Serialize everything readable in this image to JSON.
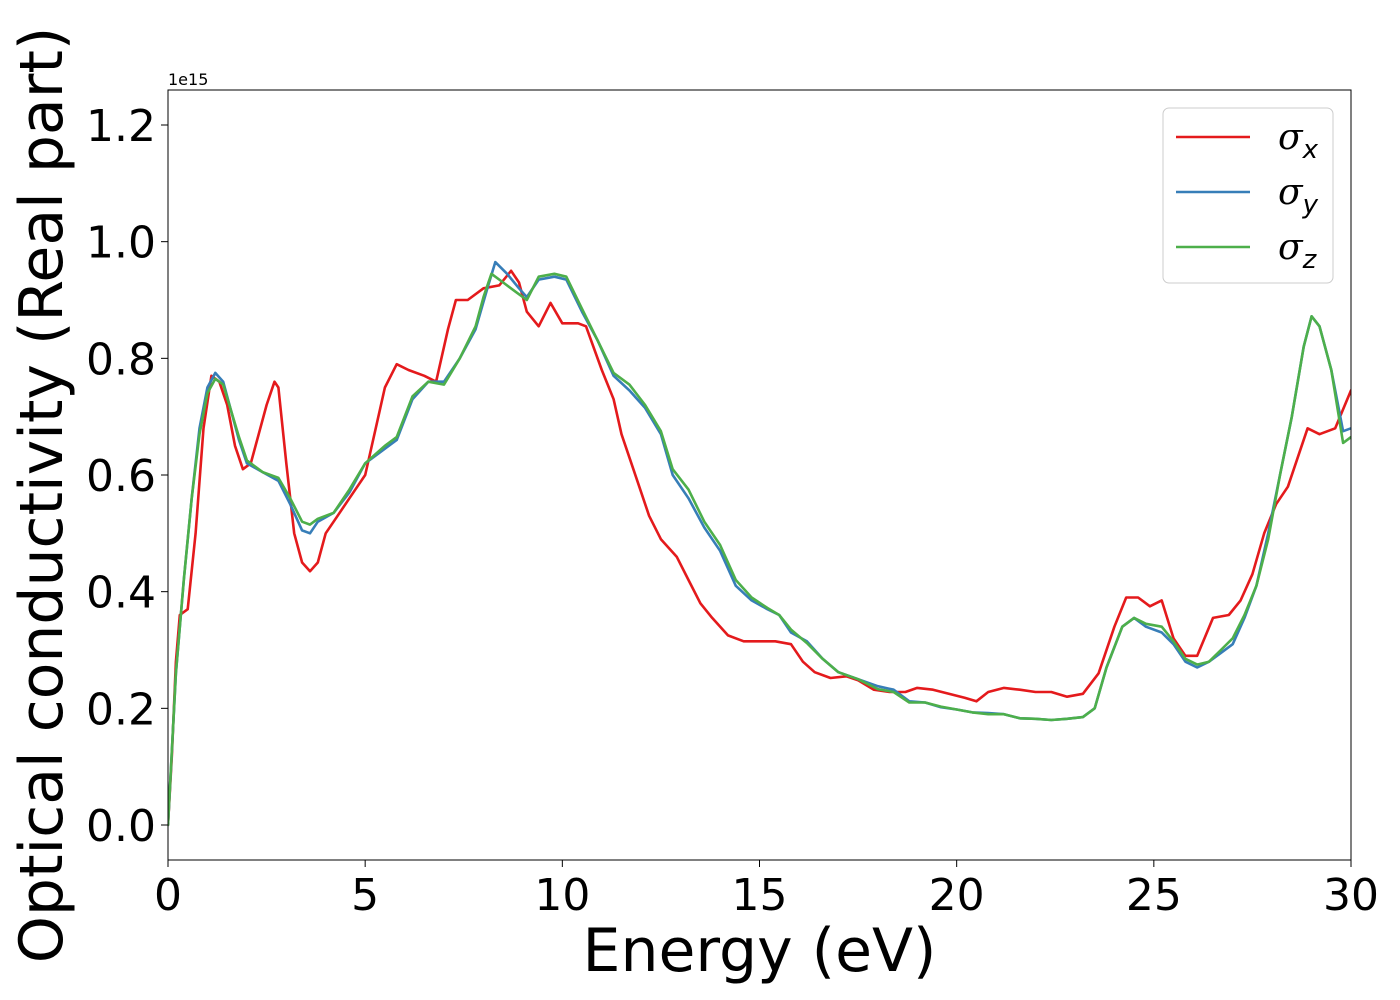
{
  "chart_data": {
    "type": "line",
    "xlabel": "Energy (eV)",
    "ylabel": "Optical conductivity (Real part)",
    "y_offset_label": "1e15",
    "xlim": [
      0,
      30
    ],
    "ylim": [
      -0.06,
      1.26
    ],
    "xticks": [
      0,
      5,
      10,
      15,
      20,
      25,
      30
    ],
    "xtick_labels": [
      "0",
      "5",
      "10",
      "15",
      "20",
      "25",
      "30"
    ],
    "yticks": [
      0.0,
      0.2,
      0.4,
      0.6,
      0.8,
      1.0,
      1.2
    ],
    "ytick_labels": [
      "0.0",
      "0.2",
      "0.4",
      "0.6",
      "0.8",
      "1.0",
      "1.2"
    ],
    "grid": false,
    "legend_position": "top-right",
    "series": [
      {
        "name": "σx",
        "legend_base": "σ",
        "legend_sub": "x",
        "color": "#e41a1c",
        "points": [
          [
            0,
            0
          ],
          [
            0.1,
            0.12
          ],
          [
            0.2,
            0.28
          ],
          [
            0.3,
            0.36
          ],
          [
            0.5,
            0.37
          ],
          [
            0.7,
            0.5
          ],
          [
            0.9,
            0.68
          ],
          [
            1.1,
            0.77
          ],
          [
            1.3,
            0.76
          ],
          [
            1.5,
            0.72
          ],
          [
            1.7,
            0.65
          ],
          [
            1.9,
            0.61
          ],
          [
            2.1,
            0.62
          ],
          [
            2.3,
            0.67
          ],
          [
            2.5,
            0.72
          ],
          [
            2.7,
            0.76
          ],
          [
            2.8,
            0.75
          ],
          [
            3.0,
            0.62
          ],
          [
            3.2,
            0.5
          ],
          [
            3.4,
            0.45
          ],
          [
            3.6,
            0.435
          ],
          [
            3.8,
            0.45
          ],
          [
            4.0,
            0.5
          ],
          [
            4.3,
            0.53
          ],
          [
            4.6,
            0.56
          ],
          [
            5.0,
            0.6
          ],
          [
            5.2,
            0.66
          ],
          [
            5.5,
            0.75
          ],
          [
            5.8,
            0.79
          ],
          [
            6.1,
            0.78
          ],
          [
            6.5,
            0.77
          ],
          [
            6.8,
            0.76
          ],
          [
            7.1,
            0.85
          ],
          [
            7.3,
            0.9
          ],
          [
            7.6,
            0.9
          ],
          [
            8.0,
            0.92
          ],
          [
            8.4,
            0.925
          ],
          [
            8.7,
            0.95
          ],
          [
            8.9,
            0.93
          ],
          [
            9.1,
            0.88
          ],
          [
            9.4,
            0.855
          ],
          [
            9.7,
            0.895
          ],
          [
            10.0,
            0.86
          ],
          [
            10.4,
            0.86
          ],
          [
            10.6,
            0.855
          ],
          [
            11.0,
            0.78
          ],
          [
            11.3,
            0.73
          ],
          [
            11.5,
            0.67
          ],
          [
            11.9,
            0.59
          ],
          [
            12.2,
            0.53
          ],
          [
            12.5,
            0.49
          ],
          [
            12.9,
            0.46
          ],
          [
            13.2,
            0.42
          ],
          [
            13.5,
            0.38
          ],
          [
            13.8,
            0.355
          ],
          [
            14.2,
            0.325
          ],
          [
            14.6,
            0.315
          ],
          [
            15.0,
            0.315
          ],
          [
            15.4,
            0.315
          ],
          [
            15.8,
            0.31
          ],
          [
            16.1,
            0.28
          ],
          [
            16.4,
            0.262
          ],
          [
            16.8,
            0.252
          ],
          [
            17.2,
            0.255
          ],
          [
            17.5,
            0.248
          ],
          [
            17.9,
            0.232
          ],
          [
            18.3,
            0.228
          ],
          [
            18.7,
            0.228
          ],
          [
            19.0,
            0.235
          ],
          [
            19.4,
            0.232
          ],
          [
            19.8,
            0.225
          ],
          [
            20.2,
            0.218
          ],
          [
            20.5,
            0.212
          ],
          [
            20.8,
            0.228
          ],
          [
            21.2,
            0.235
          ],
          [
            21.6,
            0.232
          ],
          [
            22.0,
            0.228
          ],
          [
            22.4,
            0.228
          ],
          [
            22.8,
            0.22
          ],
          [
            23.2,
            0.225
          ],
          [
            23.6,
            0.26
          ],
          [
            24.0,
            0.34
          ],
          [
            24.3,
            0.39
          ],
          [
            24.6,
            0.39
          ],
          [
            24.9,
            0.375
          ],
          [
            25.2,
            0.385
          ],
          [
            25.5,
            0.32
          ],
          [
            25.8,
            0.29
          ],
          [
            26.1,
            0.29
          ],
          [
            26.5,
            0.355
          ],
          [
            26.9,
            0.36
          ],
          [
            27.2,
            0.385
          ],
          [
            27.5,
            0.43
          ],
          [
            27.8,
            0.5
          ],
          [
            28.1,
            0.55
          ],
          [
            28.4,
            0.58
          ],
          [
            28.7,
            0.64
          ],
          [
            28.9,
            0.68
          ],
          [
            29.2,
            0.67
          ],
          [
            29.6,
            0.68
          ],
          [
            30.0,
            0.745
          ]
        ]
      },
      {
        "name": "σy",
        "legend_base": "σ",
        "legend_sub": "y",
        "color": "#377eb8",
        "points": [
          [
            0,
            0
          ],
          [
            0.2,
            0.26
          ],
          [
            0.4,
            0.42
          ],
          [
            0.6,
            0.56
          ],
          [
            0.8,
            0.68
          ],
          [
            1.0,
            0.75
          ],
          [
            1.2,
            0.775
          ],
          [
            1.4,
            0.76
          ],
          [
            1.6,
            0.71
          ],
          [
            1.8,
            0.66
          ],
          [
            2.0,
            0.62
          ],
          [
            2.4,
            0.605
          ],
          [
            2.8,
            0.59
          ],
          [
            3.1,
            0.55
          ],
          [
            3.4,
            0.505
          ],
          [
            3.6,
            0.5
          ],
          [
            3.8,
            0.52
          ],
          [
            4.2,
            0.535
          ],
          [
            4.6,
            0.57
          ],
          [
            5.0,
            0.62
          ],
          [
            5.5,
            0.645
          ],
          [
            5.8,
            0.66
          ],
          [
            6.2,
            0.73
          ],
          [
            6.6,
            0.76
          ],
          [
            7.0,
            0.76
          ],
          [
            7.4,
            0.8
          ],
          [
            7.8,
            0.85
          ],
          [
            8.1,
            0.92
          ],
          [
            8.3,
            0.965
          ],
          [
            8.6,
            0.945
          ],
          [
            8.9,
            0.92
          ],
          [
            9.1,
            0.905
          ],
          [
            9.4,
            0.935
          ],
          [
            9.8,
            0.94
          ],
          [
            10.1,
            0.935
          ],
          [
            10.5,
            0.88
          ],
          [
            10.9,
            0.83
          ],
          [
            11.3,
            0.77
          ],
          [
            11.7,
            0.745
          ],
          [
            12.1,
            0.715
          ],
          [
            12.5,
            0.67
          ],
          [
            12.8,
            0.6
          ],
          [
            13.2,
            0.56
          ],
          [
            13.6,
            0.51
          ],
          [
            14.0,
            0.47
          ],
          [
            14.4,
            0.41
          ],
          [
            14.8,
            0.385
          ],
          [
            15.2,
            0.37
          ],
          [
            15.5,
            0.36
          ],
          [
            15.8,
            0.33
          ],
          [
            16.2,
            0.315
          ],
          [
            16.6,
            0.285
          ],
          [
            17.0,
            0.262
          ],
          [
            17.5,
            0.25
          ],
          [
            18.0,
            0.238
          ],
          [
            18.4,
            0.232
          ],
          [
            18.8,
            0.212
          ],
          [
            19.2,
            0.21
          ],
          [
            19.6,
            0.202
          ],
          [
            20.0,
            0.198
          ],
          [
            20.4,
            0.193
          ],
          [
            20.8,
            0.192
          ],
          [
            21.2,
            0.19
          ],
          [
            21.6,
            0.183
          ],
          [
            22.0,
            0.182
          ],
          [
            22.4,
            0.18
          ],
          [
            22.8,
            0.182
          ],
          [
            23.2,
            0.185
          ],
          [
            23.5,
            0.2
          ],
          [
            23.8,
            0.27
          ],
          [
            24.2,
            0.34
          ],
          [
            24.5,
            0.355
          ],
          [
            24.8,
            0.34
          ],
          [
            25.2,
            0.33
          ],
          [
            25.5,
            0.31
          ],
          [
            25.8,
            0.28
          ],
          [
            26.1,
            0.27
          ],
          [
            26.4,
            0.28
          ],
          [
            26.7,
            0.295
          ],
          [
            27.0,
            0.31
          ],
          [
            27.3,
            0.355
          ],
          [
            27.6,
            0.41
          ],
          [
            27.9,
            0.5
          ],
          [
            28.2,
            0.6
          ],
          [
            28.5,
            0.7
          ],
          [
            28.8,
            0.82
          ],
          [
            29.0,
            0.872
          ],
          [
            29.2,
            0.855
          ],
          [
            29.5,
            0.78
          ],
          [
            29.8,
            0.675
          ],
          [
            30.0,
            0.68
          ]
        ]
      },
      {
        "name": "σz",
        "legend_base": "σ",
        "legend_sub": "z",
        "color": "#4daf4a",
        "points": [
          [
            0,
            0
          ],
          [
            0.2,
            0.26
          ],
          [
            0.4,
            0.42
          ],
          [
            0.6,
            0.56
          ],
          [
            0.8,
            0.67
          ],
          [
            1.0,
            0.74
          ],
          [
            1.2,
            0.765
          ],
          [
            1.4,
            0.755
          ],
          [
            1.6,
            0.71
          ],
          [
            1.8,
            0.665
          ],
          [
            2.0,
            0.625
          ],
          [
            2.4,
            0.605
          ],
          [
            2.8,
            0.595
          ],
          [
            3.1,
            0.56
          ],
          [
            3.4,
            0.52
          ],
          [
            3.6,
            0.515
          ],
          [
            3.8,
            0.525
          ],
          [
            4.2,
            0.535
          ],
          [
            4.6,
            0.575
          ],
          [
            5.0,
            0.62
          ],
          [
            5.5,
            0.65
          ],
          [
            5.8,
            0.665
          ],
          [
            6.2,
            0.735
          ],
          [
            6.6,
            0.76
          ],
          [
            7.0,
            0.755
          ],
          [
            7.4,
            0.8
          ],
          [
            7.8,
            0.855
          ],
          [
            8.0,
            0.905
          ],
          [
            8.2,
            0.945
          ],
          [
            8.5,
            0.93
          ],
          [
            8.8,
            0.915
          ],
          [
            9.1,
            0.9
          ],
          [
            9.4,
            0.94
          ],
          [
            9.8,
            0.945
          ],
          [
            10.1,
            0.94
          ],
          [
            10.5,
            0.885
          ],
          [
            10.9,
            0.83
          ],
          [
            11.3,
            0.775
          ],
          [
            11.7,
            0.755
          ],
          [
            12.1,
            0.72
          ],
          [
            12.5,
            0.675
          ],
          [
            12.8,
            0.61
          ],
          [
            13.2,
            0.575
          ],
          [
            13.6,
            0.52
          ],
          [
            14.0,
            0.48
          ],
          [
            14.4,
            0.42
          ],
          [
            14.8,
            0.39
          ],
          [
            15.2,
            0.372
          ],
          [
            15.5,
            0.36
          ],
          [
            15.8,
            0.335
          ],
          [
            16.2,
            0.312
          ],
          [
            16.6,
            0.285
          ],
          [
            17.0,
            0.262
          ],
          [
            17.5,
            0.25
          ],
          [
            18.0,
            0.233
          ],
          [
            18.4,
            0.228
          ],
          [
            18.8,
            0.21
          ],
          [
            19.2,
            0.21
          ],
          [
            19.6,
            0.203
          ],
          [
            20.0,
            0.198
          ],
          [
            20.4,
            0.193
          ],
          [
            20.8,
            0.19
          ],
          [
            21.2,
            0.19
          ],
          [
            21.6,
            0.183
          ],
          [
            22.0,
            0.182
          ],
          [
            22.4,
            0.18
          ],
          [
            22.8,
            0.182
          ],
          [
            23.2,
            0.185
          ],
          [
            23.5,
            0.2
          ],
          [
            23.8,
            0.27
          ],
          [
            24.2,
            0.34
          ],
          [
            24.5,
            0.355
          ],
          [
            24.8,
            0.345
          ],
          [
            25.2,
            0.34
          ],
          [
            25.5,
            0.315
          ],
          [
            25.8,
            0.285
          ],
          [
            26.1,
            0.275
          ],
          [
            26.4,
            0.28
          ],
          [
            26.7,
            0.3
          ],
          [
            27.0,
            0.32
          ],
          [
            27.3,
            0.36
          ],
          [
            27.6,
            0.41
          ],
          [
            27.9,
            0.49
          ],
          [
            28.2,
            0.6
          ],
          [
            28.5,
            0.7
          ],
          [
            28.8,
            0.82
          ],
          [
            29.0,
            0.872
          ],
          [
            29.2,
            0.855
          ],
          [
            29.5,
            0.78
          ],
          [
            29.8,
            0.655
          ],
          [
            30.0,
            0.665
          ]
        ]
      }
    ]
  }
}
